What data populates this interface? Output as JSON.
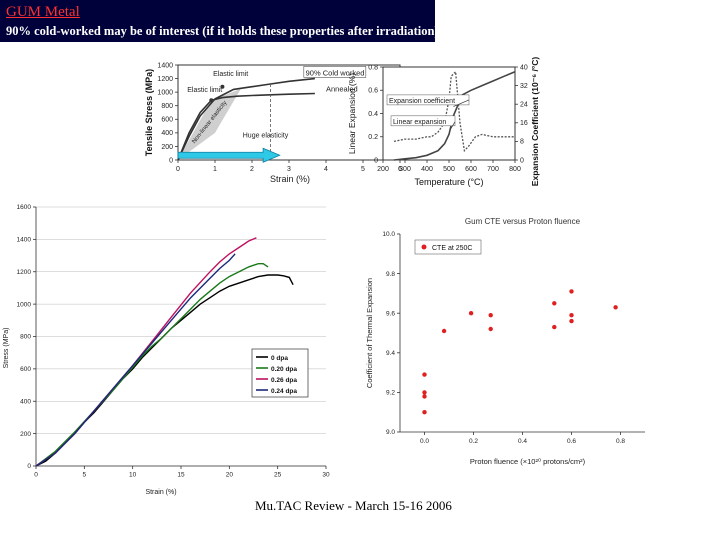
{
  "header": {
    "title": "GUM Metal",
    "subtitle": "90% cold-worked may be of interest (if it holds these properties after irradiation)"
  },
  "footer": "Mu.TAC Review - March 15-16 2006",
  "chart_data": [
    {
      "type": "line",
      "xlabel": "Strain (%)",
      "ylabel": "Tensile Stress (MPa)",
      "xlim": [
        0,
        6
      ],
      "ylim": [
        0,
        1400
      ],
      "x_ticks": [
        "0",
        "1",
        "2",
        "3",
        "4",
        "5",
        "6"
      ],
      "y_ticks": [
        "0",
        "200",
        "400",
        "600",
        "800",
        "1000",
        "1200",
        "1400"
      ],
      "series": [
        {
          "name": "90% Cold worked",
          "x": [
            0,
            0.3,
            0.6,
            1.0,
            1.5,
            2.0,
            2.5,
            3.0,
            3.7
          ],
          "y": [
            0,
            350,
            650,
            900,
            1040,
            1080,
            1120,
            1160,
            1200
          ]
        },
        {
          "name": "Annealed",
          "x": [
            0,
            0.3,
            0.6,
            0.9,
            1.2,
            1.6,
            2.0,
            2.4,
            3.0,
            3.7
          ],
          "y": [
            0,
            400,
            700,
            880,
            920,
            940,
            950,
            960,
            970,
            980
          ]
        }
      ],
      "annotations": [
        "Elastic limit",
        "Elastic limit",
        "Non-linear elasticity",
        "Huge elasticity"
      ]
    },
    {
      "type": "line",
      "xlabel": "Temperature (°C)",
      "ylabel": "Linear Expansion (%)",
      "y2label": "Expansion Coefficient (10⁻⁶ /°C)",
      "xlim": [
        200,
        800
      ],
      "ylim": [
        0,
        0.8
      ],
      "y2lim": [
        0,
        40
      ],
      "x_ticks": [
        "200",
        "300",
        "400",
        "500",
        "600",
        "700",
        "800"
      ],
      "y_ticks": [
        "0",
        "0.2",
        "0.4",
        "0.6",
        "0.8"
      ],
      "y2_ticks": [
        "0",
        "8",
        "16",
        "24",
        "32",
        "40"
      ],
      "series": [
        {
          "name": "Linear expansion",
          "x": [
            250,
            300,
            350,
            400,
            450,
            480,
            500,
            520,
            560,
            600,
            650,
            700,
            750,
            800
          ],
          "y": [
            0,
            0.01,
            0.02,
            0.04,
            0.08,
            0.14,
            0.22,
            0.38,
            0.56,
            0.6,
            0.64,
            0.68,
            0.72,
            0.76
          ]
        },
        {
          "name": "Expansion coefficient",
          "x": [
            250,
            300,
            350,
            400,
            420,
            450,
            480,
            500,
            510,
            530,
            550,
            570,
            590,
            620,
            650,
            700,
            800
          ],
          "y": [
            8,
            9,
            9,
            10,
            10,
            12,
            16,
            26,
            36,
            38,
            16,
            4,
            6,
            10,
            11,
            10,
            10
          ]
        }
      ],
      "annotations": [
        "Expansion coefficient",
        "Linear expansion"
      ]
    },
    {
      "type": "line",
      "xlabel": "Strain (%)",
      "ylabel": "Stress (MPa)",
      "xlim": [
        0,
        30
      ],
      "ylim": [
        0,
        1600
      ],
      "x_ticks": [
        "0",
        "5",
        "10",
        "15",
        "20",
        "25",
        "30"
      ],
      "y_ticks": [
        "0",
        "200",
        "400",
        "600",
        "800",
        "1000",
        "1200",
        "1400",
        "1600"
      ],
      "legend_position": "bottom-right",
      "series": [
        {
          "name": "0 dpa",
          "color": "#000000",
          "x": [
            0,
            1,
            2,
            3,
            4,
            5,
            6,
            7,
            8,
            9,
            10,
            11,
            12,
            13,
            14,
            15,
            16,
            17,
            18,
            19,
            20,
            21,
            22,
            23,
            24,
            25,
            25.6,
            26.2,
            26.6
          ],
          "y": [
            0,
            30,
            80,
            140,
            200,
            270,
            330,
            400,
            470,
            540,
            600,
            670,
            730,
            790,
            850,
            900,
            950,
            1000,
            1040,
            1080,
            1110,
            1130,
            1150,
            1170,
            1180,
            1180,
            1175,
            1165,
            1120
          ]
        },
        {
          "name": "0.20 dpa",
          "color": "#1a7a1a",
          "x": [
            0,
            2,
            4,
            6,
            8,
            9,
            10,
            11,
            12,
            13,
            14,
            15,
            16,
            17,
            18,
            19,
            20,
            21,
            22,
            23,
            23.5,
            24
          ],
          "y": [
            0,
            90,
            210,
            340,
            470,
            540,
            610,
            680,
            740,
            790,
            850,
            910,
            970,
            1030,
            1080,
            1130,
            1170,
            1200,
            1230,
            1250,
            1250,
            1230
          ]
        },
        {
          "name": "0.26 dpa",
          "color": "#c01060",
          "x": [
            0,
            2,
            4,
            6,
            8,
            10,
            12,
            14,
            16,
            18,
            19,
            20,
            21,
            22,
            22.8
          ],
          "y": [
            0,
            80,
            200,
            340,
            480,
            620,
            770,
            920,
            1070,
            1200,
            1260,
            1310,
            1350,
            1390,
            1410
          ]
        },
        {
          "name": "0.24 dpa",
          "color": "#1a2a7a",
          "x": [
            0,
            2,
            4,
            6,
            8,
            10,
            12,
            14,
            16,
            18,
            19,
            20,
            20.6
          ],
          "y": [
            0,
            80,
            200,
            340,
            480,
            620,
            760,
            900,
            1040,
            1160,
            1220,
            1270,
            1310
          ]
        }
      ]
    },
    {
      "type": "scatter",
      "title": "Gum CTE versus Proton fluence",
      "xlabel": "Proton fluence (×10²⁰ protons/cm²)",
      "ylabel": "Coefficient of Thermal Expansion",
      "xlim": [
        -0.1,
        0.9
      ],
      "ylim": [
        9.0,
        10.0
      ],
      "x_ticks": [
        "0.0",
        "0.2",
        "0.4",
        "0.6",
        "0.8"
      ],
      "y_ticks": [
        "9.0",
        "9.2",
        "9.4",
        "9.6",
        "9.8",
        "10.0"
      ],
      "legend_position": "top-left",
      "series": [
        {
          "name": "CTE at 250C",
          "color": "#e02020",
          "x": [
            0.0,
            0.0,
            0.0,
            0.0,
            0.08,
            0.19,
            0.27,
            0.27,
            0.53,
            0.53,
            0.6,
            0.6,
            0.6,
            0.78
          ],
          "y": [
            9.29,
            9.2,
            9.18,
            9.1,
            9.51,
            9.6,
            9.59,
            9.52,
            9.65,
            9.53,
            9.71,
            9.59,
            9.56,
            9.63
          ]
        }
      ]
    }
  ]
}
